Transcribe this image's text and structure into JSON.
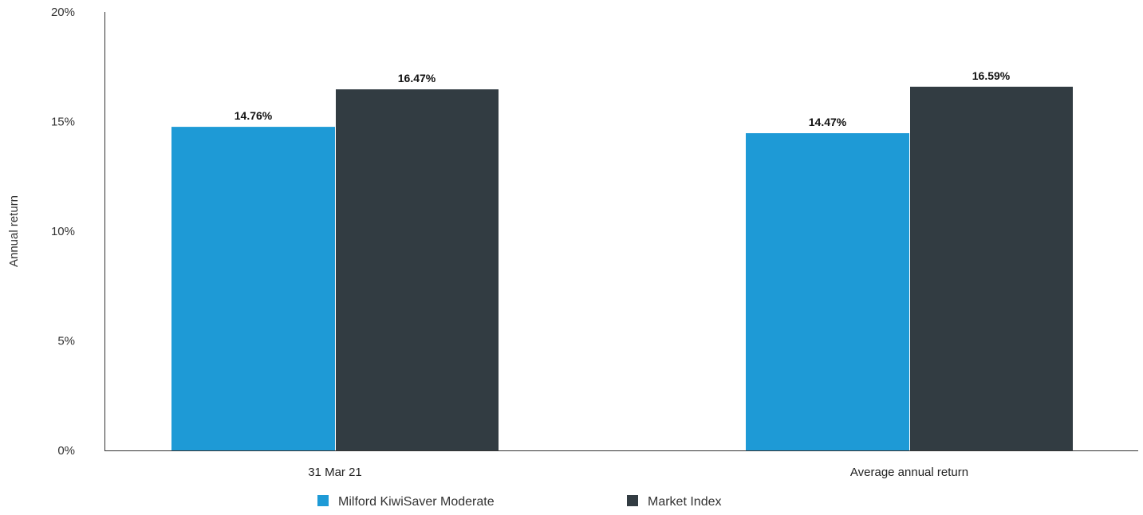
{
  "chart_data": {
    "type": "bar",
    "title": "",
    "xlabel": "",
    "ylabel": "Annual return",
    "categories": [
      "31 Mar 21",
      "Average annual return"
    ],
    "series": [
      {
        "name": "Milford KiwiSaver Moderate",
        "values": [
          14.76,
          14.47
        ],
        "labels": [
          "14.76%",
          "14.47%"
        ],
        "color": "#1e9ad6"
      },
      {
        "name": "Market Index",
        "values": [
          16.47,
          16.59
        ],
        "labels": [
          "16.47%",
          "16.59%"
        ],
        "color": "#323c42"
      }
    ],
    "ylim": [
      0,
      20
    ],
    "yticks": [
      0,
      5,
      10,
      15,
      20
    ],
    "ytick_labels": [
      "0%",
      "5%",
      "10%",
      "15%",
      "20%"
    ],
    "grid": false,
    "legend_position": "bottom"
  }
}
